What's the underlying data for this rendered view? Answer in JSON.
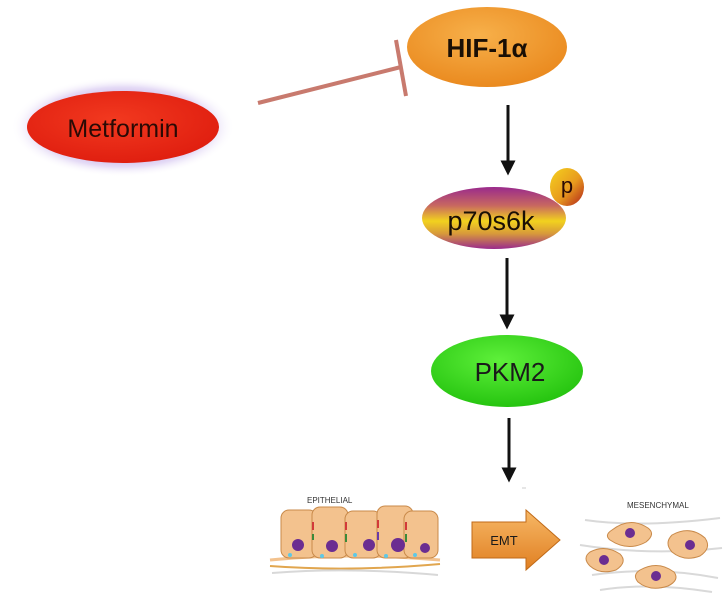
{
  "nodes": {
    "hif": {
      "label": "HIF-1α",
      "color": "#f0982e"
    },
    "metformin": {
      "label": "Metformin",
      "color": "#e8251a",
      "glow": "#b79be0"
    },
    "p70s6k": {
      "label": "p70s6k",
      "colors": [
        "#9a2a8c",
        "#f2d21e"
      ]
    },
    "phospho": {
      "label": "p",
      "colors": [
        "#f2c21e",
        "#b0201a"
      ]
    },
    "pkm2": {
      "label": "PKM2",
      "color": "#3ad61f"
    }
  },
  "inhibition_color": "#c87a6e",
  "emt": {
    "label": "EMT",
    "arrow_color": "#f19a3c",
    "epithelial_label": "EPITHELIAL",
    "mesenchymal_label": "MESENCHYMAL",
    "cell_color": "#f3c28e",
    "nucleus_color": "#6b2d91"
  }
}
